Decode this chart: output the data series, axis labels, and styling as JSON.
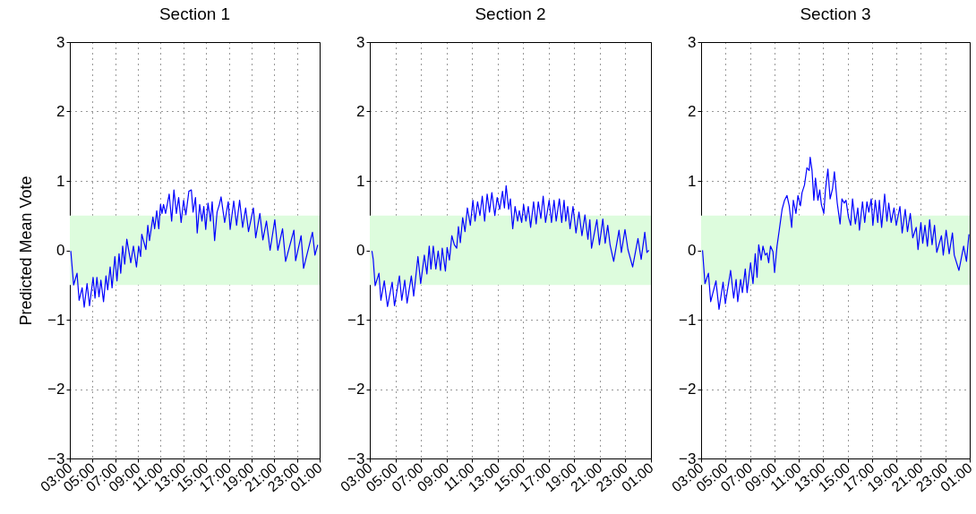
{
  "chart_data": [
    {
      "type": "line",
      "title": "Section 1",
      "ylabel": "Predicted Mean Vote",
      "xlim": [
        "2000-01-01T03:00",
        "2000-01-02T01:00"
      ],
      "ylim": [
        -3,
        3
      ],
      "yticks": [
        -3,
        -2,
        -1,
        0,
        1,
        2,
        3
      ],
      "xticks": [
        {
          "value": "2000-01-01T03:00",
          "label": "03:00"
        },
        {
          "value": "2000-01-01T05:00",
          "label": "05:00"
        },
        {
          "value": "2000-01-01T07:00",
          "label": "07:00"
        },
        {
          "value": "2000-01-01T09:00",
          "label": "09:00"
        },
        {
          "value": "2000-01-01T11:00",
          "label": "11:00"
        },
        {
          "value": "2000-01-01T13:00",
          "label": "13:00"
        },
        {
          "value": "2000-01-01T15:00",
          "label": "15:00"
        },
        {
          "value": "2000-01-01T17:00",
          "label": "17:00"
        },
        {
          "value": "2000-01-01T19:00",
          "label": "19:00"
        },
        {
          "value": "2000-01-01T21:00",
          "label": "21:00"
        },
        {
          "value": "2000-01-01T23:00",
          "label": "23:00"
        },
        {
          "value": "2000-01-02T01:00",
          "label": "01:00"
        }
      ],
      "grid": true,
      "bands": [
        {
          "axis": "y",
          "from": -0.5,
          "to": 0.5,
          "color": "#ddfcdd"
        }
      ],
      "x": [
        "2000-01-01T03:05",
        "2000-01-01T03:20",
        "2000-01-01T03:38",
        "2000-01-01T03:49",
        "2000-01-01T04:05",
        "2000-01-01T04:16",
        "2000-01-01T04:31",
        "2000-01-01T04:44",
        "2000-01-01T05:03",
        "2000-01-01T05:13",
        "2000-01-01T05:23",
        "2000-01-01T05:34",
        "2000-01-01T05:44",
        "2000-01-01T05:58",
        "2000-01-01T06:11",
        "2000-01-01T06:20",
        "2000-01-01T06:33",
        "2000-01-01T06:43",
        "2000-01-01T06:58",
        "2000-01-01T07:09",
        "2000-01-01T07:20",
        "2000-01-01T07:29",
        "2000-01-01T07:39",
        "2000-01-01T07:50",
        "2000-01-01T08:01",
        "2000-01-01T08:22",
        "2000-01-01T08:36",
        "2000-01-01T08:52",
        "2000-01-01T09:04",
        "2000-01-01T09:14",
        "2000-01-01T09:20",
        "2000-01-01T09:42",
        "2000-01-01T09:52",
        "2000-01-01T10:01",
        "2000-01-01T10:19",
        "2000-01-01T10:28",
        "2000-01-01T10:39",
        "2000-01-01T10:50",
        "2000-01-01T10:59",
        "2000-01-01T11:07",
        "2000-01-01T11:15",
        "2000-01-01T11:26",
        "2000-01-01T11:45",
        "2000-01-01T11:58",
        "2000-01-01T12:10",
        "2000-01-01T12:23",
        "2000-01-01T12:35",
        "2000-01-01T12:48",
        "2000-01-01T13:01",
        "2000-01-01T13:13",
        "2000-01-01T13:29",
        "2000-01-01T13:42",
        "2000-01-01T13:51",
        "2000-01-01T14:04",
        "2000-01-01T14:13",
        "2000-01-01T14:26",
        "2000-01-01T14:38",
        "2000-01-01T14:48",
        "2000-01-01T14:58",
        "2000-01-01T15:10",
        "2000-01-01T15:23",
        "2000-01-01T15:32",
        "2000-01-01T15:45",
        "2000-01-01T15:58",
        "2000-01-01T16:10",
        "2000-01-01T16:19",
        "2000-01-01T16:38",
        "2000-01-01T16:57",
        "2000-01-01T17:07",
        "2000-01-01T17:26",
        "2000-01-01T17:41",
        "2000-01-01T17:57",
        "2000-01-01T18:13",
        "2000-01-01T18:29",
        "2000-01-01T18:44",
        "2000-01-01T19:10",
        "2000-01-01T19:22",
        "2000-01-01T19:44",
        "2000-01-01T20:00",
        "2000-01-01T20:19",
        "2000-01-01T20:38",
        "2000-01-01T21:03",
        "2000-01-01T21:19",
        "2000-01-01T21:44",
        "2000-01-01T22:00",
        "2000-01-01T22:44",
        "2000-01-01T22:53",
        "2000-01-01T23:22",
        "2000-01-01T23:35",
        "2000-01-02T00:22",
        "2000-01-02T00:35",
        "2000-01-02T00:50"
      ],
      "series": [
        {
          "color": "#0000ff",
          "values": [
            -0.01,
            -0.5,
            -0.33,
            -0.72,
            -0.54,
            -0.82,
            -0.48,
            -0.8,
            -0.39,
            -0.69,
            -0.39,
            -0.67,
            -0.43,
            -0.74,
            -0.37,
            -0.57,
            -0.24,
            -0.54,
            -0.09,
            -0.44,
            -0.05,
            -0.33,
            0.06,
            -0.2,
            0.16,
            -0.18,
            0.06,
            -0.24,
            0.06,
            -0.09,
            0.23,
            0.01,
            0.36,
            0.14,
            0.48,
            0.31,
            0.57,
            0.31,
            0.66,
            0.53,
            0.66,
            0.53,
            0.81,
            0.42,
            0.87,
            0.53,
            0.76,
            0.4,
            0.72,
            0.51,
            0.85,
            0.87,
            0.55,
            0.76,
            0.25,
            0.66,
            0.42,
            0.63,
            0.3,
            0.68,
            0.42,
            0.7,
            0.14,
            0.55,
            0.66,
            0.77,
            0.4,
            0.7,
            0.3,
            0.71,
            0.36,
            0.72,
            0.33,
            0.61,
            0.27,
            0.61,
            0.18,
            0.53,
            0.15,
            0.42,
            0.0,
            0.44,
            0.0,
            0.31,
            -0.16,
            0.29,
            -0.15,
            0.21,
            -0.26,
            0.26,
            -0.07,
            0.08
          ]
        }
      ]
    },
    {
      "type": "line",
      "title": "Section 2",
      "xlim": [
        "2000-01-01T03:00",
        "2000-01-02T01:00"
      ],
      "ylim": [
        -3,
        3
      ],
      "yticks": [
        -3,
        -2,
        -1,
        0,
        1,
        2,
        3
      ],
      "xticks": [
        {
          "value": "2000-01-01T03:00",
          "label": "03:00"
        },
        {
          "value": "2000-01-01T05:00",
          "label": "05:00"
        },
        {
          "value": "2000-01-01T07:00",
          "label": "07:00"
        },
        {
          "value": "2000-01-01T09:00",
          "label": "09:00"
        },
        {
          "value": "2000-01-01T11:00",
          "label": "11:00"
        },
        {
          "value": "2000-01-01T13:00",
          "label": "13:00"
        },
        {
          "value": "2000-01-01T15:00",
          "label": "15:00"
        },
        {
          "value": "2000-01-01T17:00",
          "label": "17:00"
        },
        {
          "value": "2000-01-01T19:00",
          "label": "19:00"
        },
        {
          "value": "2000-01-01T21:00",
          "label": "21:00"
        },
        {
          "value": "2000-01-01T23:00",
          "label": "23:00"
        },
        {
          "value": "2000-01-02T01:00",
          "label": "01:00"
        }
      ],
      "grid": true,
      "bands": [
        {
          "axis": "y",
          "from": -0.5,
          "to": 0.5,
          "color": "#ddfcdd"
        }
      ],
      "x": [
        "2000-01-01T03:10",
        "2000-01-01T03:16",
        "2000-01-01T03:25",
        "2000-01-01T03:43",
        "2000-01-01T03:52",
        "2000-01-01T04:08",
        "2000-01-01T04:23",
        "2000-01-01T04:45",
        "2000-01-01T04:56",
        "2000-01-01T05:19",
        "2000-01-01T05:30",
        "2000-01-01T05:44",
        "2000-01-01T05:55",
        "2000-01-01T06:15",
        "2000-01-01T06:26",
        "2000-01-01T06:46",
        "2000-01-01T06:59",
        "2000-01-01T07:16",
        "2000-01-01T07:28",
        "2000-01-01T07:39",
        "2000-01-01T07:47",
        "2000-01-01T07:58",
        "2000-01-01T08:10",
        "2000-01-01T08:21",
        "2000-01-01T08:32",
        "2000-01-01T08:40",
        "2000-01-01T08:55",
        "2000-01-01T09:03",
        "2000-01-01T09:14",
        "2000-01-01T09:25",
        "2000-01-01T09:37",
        "2000-01-01T09:48",
        "2000-01-01T09:56",
        "2000-01-01T10:05",
        "2000-01-01T10:16",
        "2000-01-01T10:27",
        "2000-01-01T10:38",
        "2000-01-01T10:52",
        "2000-01-01T11:04",
        "2000-01-01T11:14",
        "2000-01-01T11:26",
        "2000-01-01T11:37",
        "2000-01-01T11:48",
        "2000-01-01T11:59",
        "2000-01-01T12:11",
        "2000-01-01T12:22",
        "2000-01-01T12:33",
        "2000-01-01T12:47",
        "2000-01-01T12:58",
        "2000-01-01T13:10",
        "2000-01-01T13:23",
        "2000-01-01T13:32",
        "2000-01-01T13:40",
        "2000-01-01T13:52",
        "2000-01-01T14:00",
        "2000-01-01T14:11",
        "2000-01-01T14:22",
        "2000-01-01T14:34",
        "2000-01-01T14:42",
        "2000-01-01T14:53",
        "2000-01-01T15:02",
        "2000-01-01T15:13",
        "2000-01-01T15:24",
        "2000-01-01T15:35",
        "2000-01-01T15:49",
        "2000-01-01T16:01",
        "2000-01-01T16:11",
        "2000-01-01T16:23",
        "2000-01-01T16:34",
        "2000-01-01T16:45",
        "2000-01-01T17:02",
        "2000-01-01T17:13",
        "2000-01-01T17:25",
        "2000-01-01T17:35",
        "2000-01-01T17:50",
        "2000-01-01T18:01",
        "2000-01-01T18:12",
        "2000-01-01T18:20",
        "2000-01-01T18:29",
        "2000-01-01T18:40",
        "2000-01-01T18:54",
        "2000-01-01T19:08",
        "2000-01-01T19:22",
        "2000-01-01T19:36",
        "2000-01-01T19:50",
        "2000-01-01T20:04",
        "2000-01-01T20:13",
        "2000-01-01T20:21",
        "2000-01-01T20:46",
        "2000-01-01T20:58",
        "2000-01-01T21:14",
        "2000-01-01T21:25",
        "2000-01-01T21:37",
        "2000-01-01T21:48",
        "2000-01-01T22:05",
        "2000-01-01T22:30",
        "2000-01-01T22:41",
        "2000-01-01T22:58",
        "2000-01-01T23:12",
        "2000-01-01T23:34",
        "2000-01-01T23:59",
        "2000-01-02T00:14",
        "2000-01-02T00:31",
        "2000-01-02T00:41",
        "2000-01-02T00:50"
      ],
      "series": [
        {
          "color": "#0000ff",
          "values": [
            -0.01,
            -0.13,
            -0.51,
            -0.33,
            -0.72,
            -0.44,
            -0.81,
            -0.46,
            -0.8,
            -0.37,
            -0.72,
            -0.43,
            -0.76,
            -0.37,
            -0.66,
            -0.09,
            -0.48,
            -0.07,
            -0.34,
            0.06,
            -0.27,
            0.06,
            -0.27,
            -0.01,
            -0.29,
            0.03,
            -0.3,
            0.04,
            -0.14,
            0.21,
            0.08,
            0.03,
            0.34,
            0.11,
            0.47,
            0.27,
            0.61,
            0.36,
            0.72,
            0.42,
            0.7,
            0.5,
            0.78,
            0.42,
            0.81,
            0.55,
            0.83,
            0.5,
            0.76,
            0.59,
            0.85,
            0.61,
            0.93,
            0.59,
            0.74,
            0.31,
            0.63,
            0.42,
            0.57,
            0.4,
            0.66,
            0.42,
            0.63,
            0.33,
            0.7,
            0.38,
            0.7,
            0.46,
            0.78,
            0.4,
            0.72,
            0.4,
            0.72,
            0.42,
            0.74,
            0.4,
            0.72,
            0.42,
            0.63,
            0.31,
            0.63,
            0.25,
            0.55,
            0.21,
            0.51,
            0.16,
            0.44,
            0.03,
            0.44,
            0.08,
            0.45,
            0.1,
            0.36,
            0.08,
            -0.16,
            0.29,
            -0.03,
            0.3,
            0.01,
            -0.24,
            0.17,
            -0.13,
            0.26,
            -0.03,
            0.0
          ]
        }
      ]
    },
    {
      "type": "line",
      "title": "Section 3",
      "xlim": [
        "2000-01-01T03:00",
        "2000-01-02T01:00"
      ],
      "ylim": [
        -3,
        3
      ],
      "yticks": [
        -3,
        -2,
        -1,
        0,
        1,
        2,
        3
      ],
      "xticks": [
        {
          "value": "2000-01-01T03:00",
          "label": "03:00"
        },
        {
          "value": "2000-01-01T05:00",
          "label": "05:00"
        },
        {
          "value": "2000-01-01T07:00",
          "label": "07:00"
        },
        {
          "value": "2000-01-01T09:00",
          "label": "09:00"
        },
        {
          "value": "2000-01-01T11:00",
          "label": "11:00"
        },
        {
          "value": "2000-01-01T13:00",
          "label": "13:00"
        },
        {
          "value": "2000-01-01T15:00",
          "label": "15:00"
        },
        {
          "value": "2000-01-01T17:00",
          "label": "17:00"
        },
        {
          "value": "2000-01-01T19:00",
          "label": "19:00"
        },
        {
          "value": "2000-01-01T21:00",
          "label": "21:00"
        },
        {
          "value": "2000-01-01T23:00",
          "label": "23:00"
        },
        {
          "value": "2000-01-02T01:00",
          "label": "01:00"
        }
      ],
      "grid": true,
      "bands": [
        {
          "axis": "y",
          "from": -0.5,
          "to": 0.5,
          "color": "#ddfcdd"
        }
      ],
      "x": [
        "2000-01-01T03:07",
        "2000-01-01T03:19",
        "2000-01-01T03:36",
        "2000-01-01T03:47",
        "2000-01-01T04:13",
        "2000-01-01T04:28",
        "2000-01-01T04:48",
        "2000-01-01T04:59",
        "2000-01-01T05:25",
        "2000-01-01T05:40",
        "2000-01-01T05:52",
        "2000-01-01T06:00",
        "2000-01-01T06:14",
        "2000-01-01T06:23",
        "2000-01-01T06:37",
        "2000-01-01T06:46",
        "2000-01-01T07:03",
        "2000-01-01T07:15",
        "2000-01-01T07:26",
        "2000-01-01T07:35",
        "2000-01-01T07:43",
        "2000-01-01T07:55",
        "2000-01-01T08:04",
        "2000-01-01T08:15",
        "2000-01-01T08:24",
        "2000-01-01T08:32",
        "2000-01-01T08:41",
        "2000-01-01T08:53",
        "2000-01-01T09:01",
        "2000-01-01T09:13",
        "2000-01-01T09:24",
        "2000-01-01T09:38",
        "2000-01-01T09:50",
        "2000-01-01T10:02",
        "2000-01-01T10:13",
        "2000-01-01T10:25",
        "2000-01-01T10:33",
        "2000-01-01T10:46",
        "2000-01-01T10:56",
        "2000-01-01T11:08",
        "2000-01-01T11:16",
        "2000-01-01T11:28",
        "2000-01-01T11:40",
        "2000-01-01T11:51",
        "2000-01-01T11:56",
        "2000-01-01T12:05",
        "2000-01-01T12:14",
        "2000-01-01T12:22",
        "2000-01-01T12:34",
        "2000-01-01T12:43",
        "2000-01-01T12:51",
        "2000-01-01T13:03",
        "2000-01-01T13:11",
        "2000-01-01T13:23",
        "2000-01-01T13:34",
        "2000-01-01T13:46",
        "2000-01-01T13:55",
        "2000-01-01T14:09",
        "2000-01-01T14:23",
        "2000-01-01T14:32",
        "2000-01-01T14:43",
        "2000-01-01T14:52",
        "2000-01-01T15:04",
        "2000-01-01T15:15",
        "2000-01-01T15:24",
        "2000-01-01T15:38",
        "2000-01-01T15:50",
        "2000-01-01T15:58",
        "2000-01-01T16:13",
        "2000-01-01T16:24",
        "2000-01-01T16:35",
        "2000-01-01T16:44",
        "2000-01-01T16:56",
        "2000-01-01T17:04",
        "2000-01-01T17:16",
        "2000-01-01T17:28",
        "2000-01-01T17:36",
        "2000-01-01T17:47",
        "2000-01-01T18:02",
        "2000-01-01T18:13",
        "2000-01-01T18:22",
        "2000-01-01T18:34",
        "2000-01-01T18:48",
        "2000-01-01T18:59",
        "2000-01-01T19:17",
        "2000-01-01T19:28",
        "2000-01-01T19:43",
        "2000-01-01T19:54",
        "2000-01-01T20:08",
        "2000-01-01T20:20",
        "2000-01-01T20:37",
        "2000-01-01T20:46",
        "2000-01-01T21:00",
        "2000-01-01T21:09",
        "2000-01-01T21:20",
        "2000-01-01T21:32",
        "2000-01-01T21:43",
        "2000-01-01T21:55",
        "2000-01-01T22:07",
        "2000-01-01T22:18",
        "2000-01-01T22:41",
        "2000-01-01T22:50",
        "2000-01-01T23:04",
        "2000-01-01T23:19",
        "2000-01-01T23:35",
        "2000-01-01T23:44",
        "2000-01-02T00:07",
        "2000-01-02T00:30",
        "2000-01-02T00:44",
        "2000-01-02T00:56"
      ],
      "series": [
        {
          "color": "#0000ff",
          "values": [
            0.0,
            -0.48,
            -0.33,
            -0.74,
            -0.44,
            -0.85,
            -0.46,
            -0.77,
            -0.29,
            -0.69,
            -0.42,
            -0.74,
            -0.42,
            -0.61,
            -0.27,
            -0.61,
            -0.18,
            -0.48,
            -0.05,
            -0.39,
            0.08,
            -0.14,
            0.06,
            -0.07,
            -0.04,
            -0.18,
            0.06,
            -0.02,
            -0.32,
            0.06,
            0.29,
            0.59,
            0.72,
            0.79,
            0.64,
            0.33,
            0.72,
            0.53,
            0.79,
            0.64,
            0.83,
            0.94,
            1.19,
            1.15,
            1.34,
            1.15,
            0.72,
            1.04,
            0.72,
            0.87,
            0.66,
            0.53,
            0.87,
            1.17,
            0.74,
            0.89,
            1.13,
            0.68,
            0.38,
            0.74,
            0.68,
            0.72,
            0.48,
            0.36,
            0.74,
            0.38,
            0.61,
            0.29,
            0.7,
            0.4,
            0.7,
            0.55,
            0.74,
            0.36,
            0.72,
            0.4,
            0.72,
            0.33,
            0.81,
            0.42,
            0.68,
            0.4,
            0.61,
            0.36,
            0.63,
            0.25,
            0.59,
            0.27,
            0.53,
            0.18,
            0.33,
            0.01,
            0.4,
            0.1,
            0.36,
            0.06,
            0.44,
            0.08,
            0.36,
            -0.03,
            0.21,
            -0.07,
            0.29,
            -0.05,
            0.25,
            -0.07,
            -0.29,
            0.06,
            -0.16,
            0.23
          ]
        }
      ]
    }
  ]
}
